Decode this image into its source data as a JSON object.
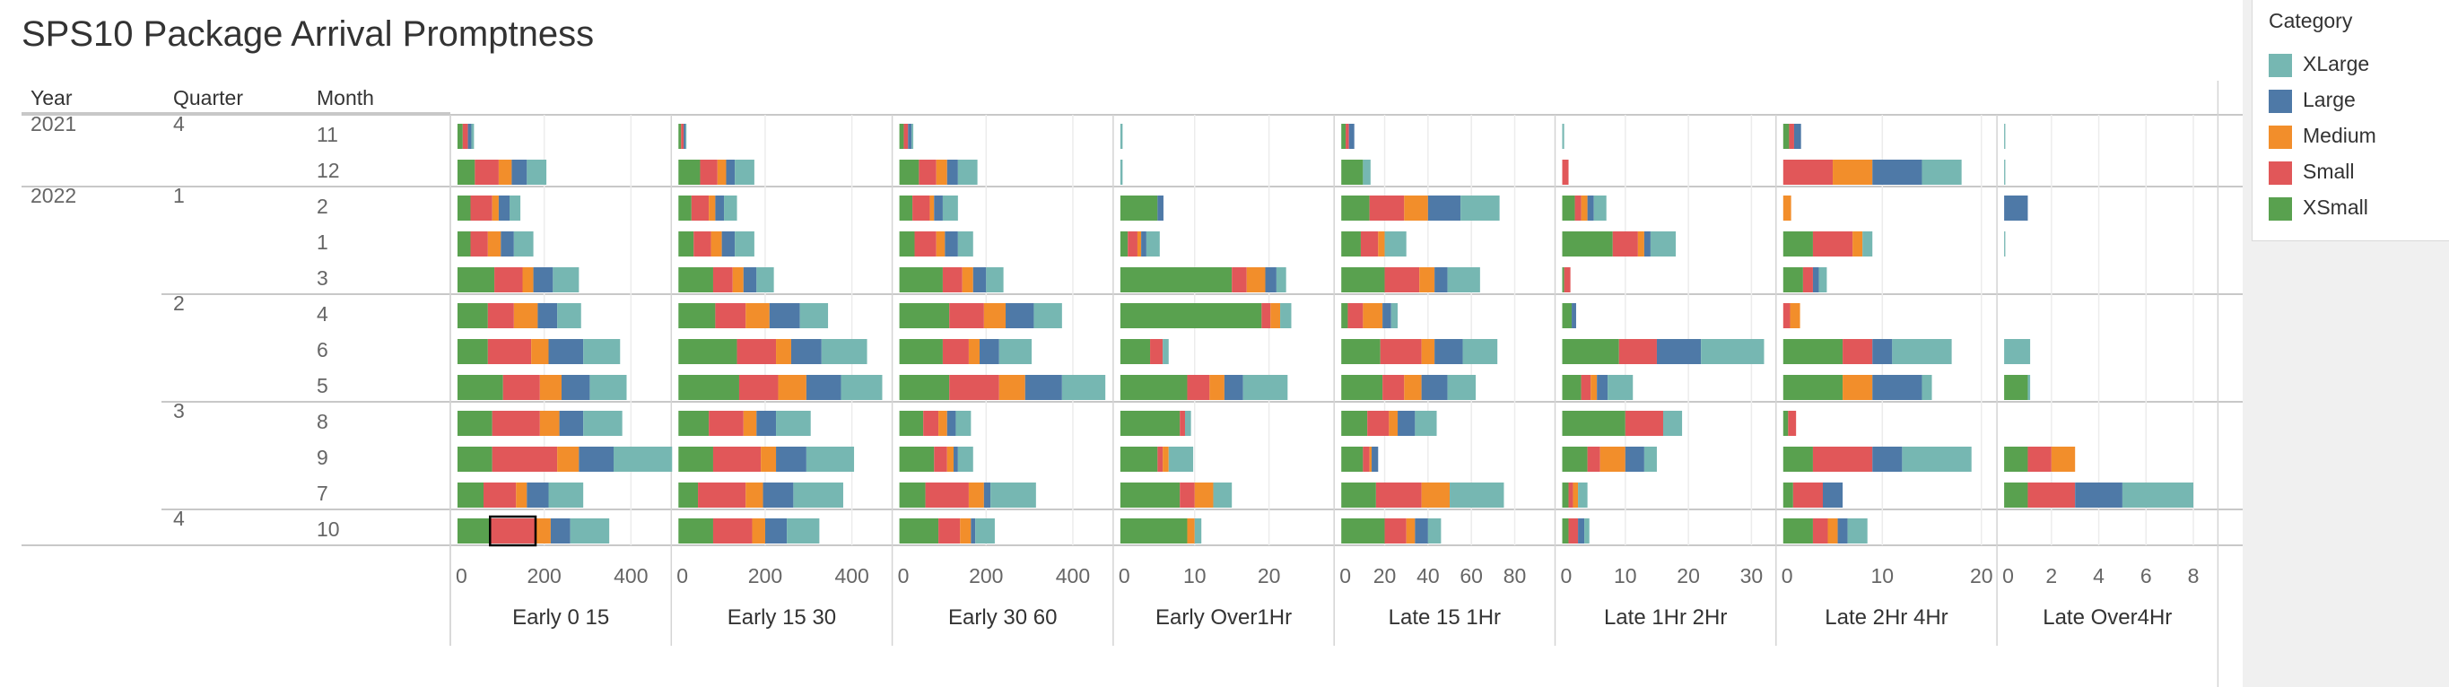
{
  "title": "SPS10 Package Arrival Promptness",
  "row_headers": [
    "Year",
    "Quarter",
    "Month"
  ],
  "legend": {
    "title": "Category",
    "items": [
      {
        "label": "XLarge",
        "color": "#76b7b2"
      },
      {
        "label": "Large",
        "color": "#4e79a7"
      },
      {
        "label": "Medium",
        "color": "#f28e2b"
      },
      {
        "label": "Small",
        "color": "#e15759"
      },
      {
        "label": "XSmall",
        "color": "#59a14f"
      }
    ]
  },
  "chart_data": {
    "type": "bar",
    "stacked": true,
    "orientation": "horizontal",
    "stack_order": [
      "XSmall",
      "Small",
      "Medium",
      "Large",
      "XLarge"
    ],
    "colors": {
      "XSmall": "#59a14f",
      "Small": "#e15759",
      "Medium": "#f28e2b",
      "Large": "#4e79a7",
      "XLarge": "#76b7b2"
    },
    "rows": [
      {
        "year": "2021",
        "quarter": "4",
        "month": "11"
      },
      {
        "year": "",
        "quarter": "",
        "month": "12"
      },
      {
        "year": "2022",
        "quarter": "1",
        "month": "2"
      },
      {
        "year": "",
        "quarter": "",
        "month": "1"
      },
      {
        "year": "",
        "quarter": "",
        "month": "3"
      },
      {
        "year": "",
        "quarter": "2",
        "month": "4"
      },
      {
        "year": "",
        "quarter": "",
        "month": "6"
      },
      {
        "year": "",
        "quarter": "",
        "month": "5"
      },
      {
        "year": "",
        "quarter": "3",
        "month": "8"
      },
      {
        "year": "",
        "quarter": "",
        "month": "9"
      },
      {
        "year": "",
        "quarter": "",
        "month": "7"
      },
      {
        "year": "",
        "quarter": "4",
        "month": "10"
      }
    ],
    "panels": [
      {
        "name": "Early 0 15",
        "max": 480,
        "ticks": [
          0,
          200,
          400
        ],
        "values": [
          [
            12,
            12,
            0,
            8,
            6
          ],
          [
            40,
            55,
            30,
            35,
            45
          ],
          [
            30,
            50,
            15,
            25,
            25
          ],
          [
            30,
            40,
            30,
            30,
            45
          ],
          [
            85,
            65,
            25,
            45,
            60
          ],
          [
            70,
            60,
            55,
            45,
            55
          ],
          [
            70,
            100,
            40,
            80,
            85
          ],
          [
            105,
            85,
            50,
            65,
            85
          ],
          [
            80,
            110,
            45,
            55,
            90
          ],
          [
            80,
            150,
            50,
            80,
            135
          ],
          [
            60,
            75,
            25,
            50,
            80
          ],
          [
            75,
            105,
            35,
            45,
            90
          ]
        ]
      },
      {
        "name": "Early 15 30",
        "max": 480,
        "ticks": [
          0,
          200,
          400
        ],
        "values": [
          [
            6,
            6,
            0,
            4,
            2
          ],
          [
            50,
            40,
            20,
            20,
            45
          ],
          [
            30,
            40,
            15,
            20,
            30
          ],
          [
            35,
            40,
            25,
            30,
            45
          ],
          [
            80,
            45,
            25,
            30,
            40
          ],
          [
            85,
            70,
            55,
            70,
            65
          ],
          [
            135,
            90,
            35,
            70,
            105
          ],
          [
            140,
            90,
            65,
            80,
            95
          ],
          [
            70,
            80,
            30,
            45,
            80
          ],
          [
            80,
            110,
            35,
            70,
            110
          ],
          [
            45,
            110,
            40,
            70,
            115
          ],
          [
            80,
            90,
            30,
            50,
            75
          ]
        ]
      },
      {
        "name": "Early 30 60",
        "max": 480,
        "ticks": [
          0,
          200,
          400
        ],
        "values": [
          [
            10,
            10,
            0,
            8,
            4
          ],
          [
            45,
            40,
            25,
            25,
            45
          ],
          [
            30,
            40,
            10,
            20,
            35
          ],
          [
            35,
            50,
            20,
            30,
            35
          ],
          [
            100,
            45,
            25,
            30,
            40
          ],
          [
            115,
            80,
            50,
            65,
            65
          ],
          [
            100,
            60,
            25,
            45,
            75
          ],
          [
            115,
            115,
            60,
            85,
            100
          ],
          [
            55,
            35,
            20,
            20,
            35
          ],
          [
            80,
            30,
            15,
            10,
            35
          ],
          [
            60,
            100,
            35,
            15,
            105
          ],
          [
            90,
            50,
            25,
            10,
            45
          ]
        ]
      },
      {
        "name": "Early Over1Hr",
        "max": 28,
        "ticks": [
          0,
          10,
          20
        ],
        "values": [
          [
            0,
            0,
            0,
            0,
            0.3
          ],
          [
            0,
            0,
            0,
            0,
            0.3
          ],
          [
            5,
            0,
            0,
            0.8,
            0
          ],
          [
            1,
            1.3,
            0.5,
            0.7,
            1.8
          ],
          [
            15,
            2,
            2.5,
            1.5,
            1.3
          ],
          [
            19,
            1.2,
            1.3,
            0,
            1.5
          ],
          [
            4,
            1.7,
            0,
            0,
            0.8
          ],
          [
            9,
            3,
            2,
            2.5,
            6
          ],
          [
            8,
            0.7,
            0,
            0,
            0.8
          ],
          [
            5,
            0.7,
            0.8,
            0,
            3.3
          ],
          [
            8,
            2,
            2.5,
            0,
            2.5
          ],
          [
            9,
            0,
            1,
            0,
            0.9
          ]
        ]
      },
      {
        "name": "Late 15 1Hr",
        "max": 96,
        "ticks": [
          0,
          20,
          40,
          60,
          80
        ],
        "values": [
          [
            2,
            1.5,
            0,
            2.5,
            0
          ],
          [
            10,
            0,
            0,
            0,
            3.5
          ],
          [
            13,
            16,
            11,
            15,
            18
          ],
          [
            9,
            8,
            3,
            0,
            10
          ],
          [
            20,
            16,
            7,
            6,
            15
          ],
          [
            3,
            7,
            9,
            4,
            3
          ],
          [
            18,
            19,
            6,
            13,
            16
          ],
          [
            19,
            10,
            8,
            12,
            13
          ],
          [
            12,
            10,
            4,
            8,
            10
          ],
          [
            10,
            3,
            1,
            3,
            0
          ],
          [
            16,
            21,
            13,
            0,
            25
          ],
          [
            20,
            10,
            4,
            6,
            6
          ]
        ]
      },
      {
        "name": "Late 1Hr 2Hr",
        "max": 33,
        "ticks": [
          0,
          10,
          20,
          30
        ],
        "values": [
          [
            0,
            0,
            0,
            0,
            0.3
          ],
          [
            0,
            1,
            0,
            0,
            0
          ],
          [
            2,
            1,
            1,
            1,
            2
          ],
          [
            8,
            4,
            1,
            1,
            4
          ],
          [
            0.3,
            1,
            0,
            0,
            0
          ],
          [
            1.5,
            0,
            0,
            0.7,
            0
          ],
          [
            9,
            6,
            0,
            7,
            10
          ],
          [
            3,
            1.5,
            1,
            1.7,
            4
          ],
          [
            10,
            6,
            0,
            0,
            3
          ],
          [
            4,
            2,
            4,
            3,
            2
          ],
          [
            1,
            0.7,
            0.8,
            0,
            1.5
          ],
          [
            1,
            1.5,
            0,
            1,
            0.8
          ]
        ]
      },
      {
        "name": "Late 2Hr 4Hr",
        "max": 21,
        "ticks": [
          0,
          10,
          20
        ],
        "values": [
          [
            0.6,
            0.5,
            0,
            0.7,
            0
          ],
          [
            0,
            5,
            4,
            5,
            4
          ],
          [
            0,
            0,
            0.8,
            0,
            0
          ],
          [
            3,
            4,
            1,
            0,
            1
          ],
          [
            2,
            1,
            0,
            0.6,
            0.8
          ],
          [
            0,
            0.7,
            1,
            0,
            0
          ],
          [
            6,
            3,
            0,
            2,
            6
          ],
          [
            6,
            0,
            3,
            5,
            1
          ],
          [
            0.5,
            0.8,
            0,
            0,
            0
          ],
          [
            3,
            6,
            0,
            3,
            7
          ],
          [
            1,
            3,
            0,
            2,
            0
          ],
          [
            3,
            1.5,
            1,
            1,
            2
          ]
        ]
      },
      {
        "name": "Late Over4Hr",
        "max": 8.8,
        "ticks": [
          0,
          2,
          4,
          6,
          8
        ],
        "values": [
          [
            0,
            0,
            0,
            0,
            0.05
          ],
          [
            0,
            0,
            0,
            0,
            0.05
          ],
          [
            0,
            0,
            0,
            1,
            0
          ],
          [
            0,
            0,
            0,
            0,
            0.05
          ],
          [
            0,
            0,
            0,
            0,
            0
          ],
          [
            0,
            0,
            0,
            0,
            0
          ],
          [
            0,
            0,
            0,
            0,
            1.1
          ],
          [
            1,
            0,
            0,
            0,
            0.1
          ],
          [
            0,
            0,
            0,
            0,
            0
          ],
          [
            1,
            1,
            1,
            0,
            0
          ],
          [
            1,
            2,
            0,
            2,
            3
          ],
          [
            0,
            0,
            0,
            0,
            0
          ]
        ]
      }
    ]
  }
}
